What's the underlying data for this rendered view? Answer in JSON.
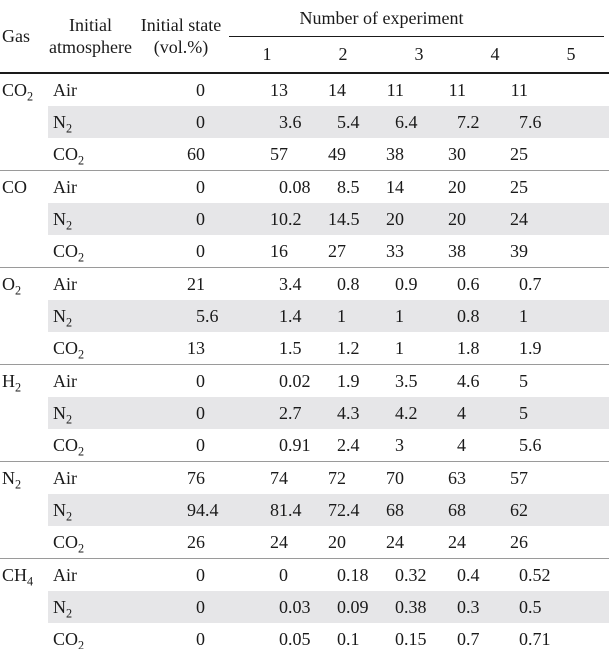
{
  "table": {
    "header": {
      "gas": "Gas",
      "atmosphere_lines": [
        "Initial",
        "atmosphere"
      ],
      "state_lines": [
        "Initial state",
        "(vol.%)"
      ],
      "experiment_title": "Number of experiment",
      "experiment_numbers": [
        "1",
        "2",
        "3",
        "4",
        "5"
      ]
    },
    "groups": [
      {
        "gas": {
          "base": "CO",
          "sub": "2"
        },
        "rows": [
          {
            "atmosphere": {
              "base": "Air",
              "sub": ""
            },
            "shaded": false,
            "initial_state": "0",
            "values": [
              "13",
              "14",
              "11",
              "11",
              "11"
            ]
          },
          {
            "atmosphere": {
              "base": "N",
              "sub": "2"
            },
            "shaded": true,
            "initial_state": "0",
            "values": [
              "3.6",
              "5.4",
              "6.4",
              "7.2",
              "7.6"
            ]
          },
          {
            "atmosphere": {
              "base": "CO",
              "sub": "2"
            },
            "shaded": false,
            "initial_state": "60",
            "values": [
              "57",
              "49",
              "38",
              "30",
              "25"
            ]
          }
        ]
      },
      {
        "gas": {
          "base": "CO",
          "sub": ""
        },
        "rows": [
          {
            "atmosphere": {
              "base": "Air",
              "sub": ""
            },
            "shaded": false,
            "initial_state": "0",
            "values": [
              "0.08",
              "8.5",
              "14",
              "20",
              "25"
            ]
          },
          {
            "atmosphere": {
              "base": "N",
              "sub": "2"
            },
            "shaded": true,
            "initial_state": "0",
            "values": [
              "10.2",
              "14.5",
              "20",
              "20",
              "24"
            ]
          },
          {
            "atmosphere": {
              "base": "CO",
              "sub": "2"
            },
            "shaded": false,
            "initial_state": "0",
            "values": [
              "16",
              "27",
              "33",
              "38",
              "39"
            ]
          }
        ]
      },
      {
        "gas": {
          "base": "O",
          "sub": "2"
        },
        "rows": [
          {
            "atmosphere": {
              "base": "Air",
              "sub": ""
            },
            "shaded": false,
            "initial_state": "21",
            "values": [
              "3.4",
              "0.8",
              "0.9",
              "0.6",
              "0.7"
            ]
          },
          {
            "atmosphere": {
              "base": "N",
              "sub": "2"
            },
            "shaded": true,
            "initial_state": "5.6",
            "values": [
              "1.4",
              "1",
              "1",
              "0.8",
              "1"
            ]
          },
          {
            "atmosphere": {
              "base": "CO",
              "sub": "2"
            },
            "shaded": false,
            "initial_state": "13",
            "values": [
              "1.5",
              "1.2",
              "1",
              "1.8",
              "1.9"
            ]
          }
        ]
      },
      {
        "gas": {
          "base": "H",
          "sub": "2"
        },
        "rows": [
          {
            "atmosphere": {
              "base": "Air",
              "sub": ""
            },
            "shaded": false,
            "initial_state": "0",
            "values": [
              "0.02",
              "1.9",
              "3.5",
              "4.6",
              "5"
            ]
          },
          {
            "atmosphere": {
              "base": "N",
              "sub": "2"
            },
            "shaded": true,
            "initial_state": "0",
            "values": [
              "2.7",
              "4.3",
              "4.2",
              "4",
              "5"
            ]
          },
          {
            "atmosphere": {
              "base": "CO",
              "sub": "2"
            },
            "shaded": false,
            "initial_state": "0",
            "values": [
              "0.91",
              "2.4",
              "3",
              "4",
              "5.6"
            ]
          }
        ]
      },
      {
        "gas": {
          "base": "N",
          "sub": "2"
        },
        "rows": [
          {
            "atmosphere": {
              "base": "Air",
              "sub": ""
            },
            "shaded": false,
            "initial_state": "76",
            "values": [
              "74",
              "72",
              "70",
              "63",
              "57"
            ]
          },
          {
            "atmosphere": {
              "base": "N",
              "sub": "2"
            },
            "shaded": true,
            "initial_state": "94.4",
            "values": [
              "81.4",
              "72.4",
              "68",
              "68",
              "62"
            ]
          },
          {
            "atmosphere": {
              "base": "CO",
              "sub": "2"
            },
            "shaded": false,
            "initial_state": "26",
            "values": [
              "24",
              "20",
              "24",
              "24",
              "26"
            ]
          }
        ]
      },
      {
        "gas": {
          "base": "CH",
          "sub": "4"
        },
        "rows": [
          {
            "atmosphere": {
              "base": "Air",
              "sub": ""
            },
            "shaded": false,
            "initial_state": "0",
            "values": [
              "0",
              "0.18",
              "0.32",
              "0.4",
              "0.52"
            ]
          },
          {
            "atmosphere": {
              "base": "N",
              "sub": "2"
            },
            "shaded": true,
            "initial_state": "0",
            "values": [
              "0.03",
              "0.09",
              "0.38",
              "0.3",
              "0.5"
            ]
          },
          {
            "atmosphere": {
              "base": "CO",
              "sub": "2"
            },
            "shaded": false,
            "initial_state": "0",
            "values": [
              "0.05",
              "0.1",
              "0.15",
              "0.7",
              "0.71"
            ]
          }
        ]
      }
    ],
    "colors": {
      "shaded_row": "#e6e6e8",
      "header_rule": "#1a1a1a",
      "group_rule": "#9a9a9a",
      "text": "#1a1a1a"
    }
  }
}
